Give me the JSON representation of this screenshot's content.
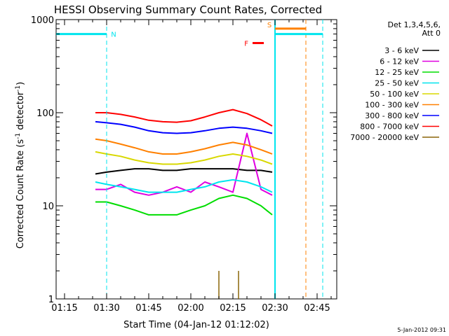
{
  "chart_data": {
    "type": "line",
    "title": "HESSI Observing Summary Count Rates, Corrected",
    "xlabel": "Start Time (04-Jan-12 01:12:02)",
    "ylabel_main": "Corrected Count Rate (s",
    "ylabel_sup1": "-1",
    "ylabel_mid": " detector",
    "ylabel_sup2": "-1",
    "ylabel_end": ")",
    "footer": "5-Jan-2012 09:31",
    "x_scale": "time",
    "x_range": [
      "01:12",
      "02:52"
    ],
    "y_scale": "log",
    "ylim": [
      1,
      1000
    ],
    "x_ticks": [
      "01:15",
      "01:30",
      "01:45",
      "02:00",
      "02:15",
      "02:30",
      "02:45"
    ],
    "y_ticks": [
      "1",
      "10",
      "100",
      "1000"
    ],
    "legend_header": [
      "Det 1,3,4,5,6,",
      "Att 0"
    ],
    "legend_position": "right",
    "series": [
      {
        "name": "3 - 6 keV",
        "color": "#000000",
        "x": [
          "01:26",
          "01:30",
          "01:35",
          "01:40",
          "01:45",
          "01:50",
          "01:55",
          "02:00",
          "02:05",
          "02:10",
          "02:15",
          "02:20",
          "02:25",
          "02:29"
        ],
        "y": [
          22,
          23,
          24,
          25,
          25,
          24,
          24,
          25,
          25,
          25,
          25,
          24,
          24,
          23
        ]
      },
      {
        "name": "6 - 12 keV",
        "color": "#e000e0",
        "x": [
          "01:26",
          "01:30",
          "01:35",
          "01:40",
          "01:45",
          "01:50",
          "01:55",
          "02:00",
          "02:05",
          "02:10",
          "02:15",
          "02:20",
          "02:25",
          "02:29"
        ],
        "y": [
          15,
          15,
          17,
          14,
          13,
          14,
          16,
          14,
          18,
          16,
          14,
          60,
          15,
          13
        ]
      },
      {
        "name": "12 - 25 keV",
        "color": "#00dd00",
        "x": [
          "01:26",
          "01:30",
          "01:35",
          "01:40",
          "01:45",
          "01:50",
          "01:55",
          "02:00",
          "02:05",
          "02:10",
          "02:15",
          "02:20",
          "02:25",
          "02:29"
        ],
        "y": [
          11,
          11,
          10,
          9,
          8,
          8,
          8,
          9,
          10,
          12,
          13,
          12,
          10,
          8
        ]
      },
      {
        "name": "25 - 50 keV",
        "color": "#00e5ee",
        "x": [
          "01:26",
          "01:30",
          "01:35",
          "01:40",
          "01:45",
          "01:50",
          "01:55",
          "02:00",
          "02:05",
          "02:10",
          "02:15",
          "02:20",
          "02:25",
          "02:29"
        ],
        "y": [
          18,
          17,
          16,
          15,
          14,
          14,
          14,
          15,
          16,
          18,
          19,
          18,
          16,
          14
        ]
      },
      {
        "name": "50 - 100 keV",
        "color": "#d8d800",
        "x": [
          "01:26",
          "01:30",
          "01:35",
          "01:40",
          "01:45",
          "01:50",
          "01:55",
          "02:00",
          "02:05",
          "02:10",
          "02:15",
          "02:20",
          "02:25",
          "02:29"
        ],
        "y": [
          38,
          36,
          34,
          31,
          29,
          28,
          28,
          29,
          31,
          34,
          36,
          34,
          31,
          28
        ]
      },
      {
        "name": "100 - 300 keV",
        "color": "#ff8000",
        "x": [
          "01:26",
          "01:30",
          "01:35",
          "01:40",
          "01:45",
          "01:50",
          "01:55",
          "02:00",
          "02:05",
          "02:10",
          "02:15",
          "02:20",
          "02:25",
          "02:29"
        ],
        "y": [
          52,
          50,
          46,
          42,
          38,
          36,
          36,
          38,
          41,
          45,
          48,
          45,
          40,
          36
        ]
      },
      {
        "name": "300 - 800 keV",
        "color": "#0000ff",
        "x": [
          "01:26",
          "01:30",
          "01:35",
          "01:40",
          "01:45",
          "01:50",
          "01:55",
          "02:00",
          "02:05",
          "02:10",
          "02:15",
          "02:20",
          "02:25",
          "02:29"
        ],
        "y": [
          80,
          78,
          75,
          70,
          64,
          61,
          60,
          61,
          64,
          68,
          70,
          68,
          64,
          60
        ]
      },
      {
        "name": "800 - 7000 keV",
        "color": "#ff0000",
        "x": [
          "01:26",
          "01:30",
          "01:35",
          "01:40",
          "01:45",
          "01:50",
          "01:55",
          "02:00",
          "02:05",
          "02:10",
          "02:15",
          "02:20",
          "02:25",
          "02:29"
        ],
        "y": [
          100,
          100,
          96,
          90,
          83,
          80,
          79,
          82,
          90,
          100,
          108,
          98,
          84,
          72
        ]
      },
      {
        "name": "7000 - 20000 keV",
        "color": "#8b6508",
        "x": [
          "02:10",
          "02:17"
        ],
        "y": [
          2,
          2
        ]
      }
    ],
    "annotations": [
      {
        "label": "N",
        "color": "#00e5ee",
        "x_start": "01:12",
        "x_end": "01:30",
        "y": 700
      },
      {
        "label": "N",
        "color": "#00e5ee",
        "x_start": "02:30",
        "x_end": "02:47",
        "y": 700
      },
      {
        "label": "S",
        "color": "#ff8000",
        "x_start": "02:30",
        "x_end": "02:41",
        "y": 800
      },
      {
        "label": "F",
        "color": "#ff0000",
        "x_start": "02:22",
        "x_end": "02:26",
        "y": 560
      }
    ],
    "markers": [
      {
        "x": "01:30",
        "color": "#00e5ee",
        "style": "dashed"
      },
      {
        "x": "02:30",
        "color": "#00e5ee",
        "style": "solid"
      },
      {
        "x": "02:41",
        "color": "#ff8000",
        "style": "dashed"
      },
      {
        "x": "02:47",
        "color": "#00e5ee",
        "style": "dashed"
      }
    ]
  }
}
